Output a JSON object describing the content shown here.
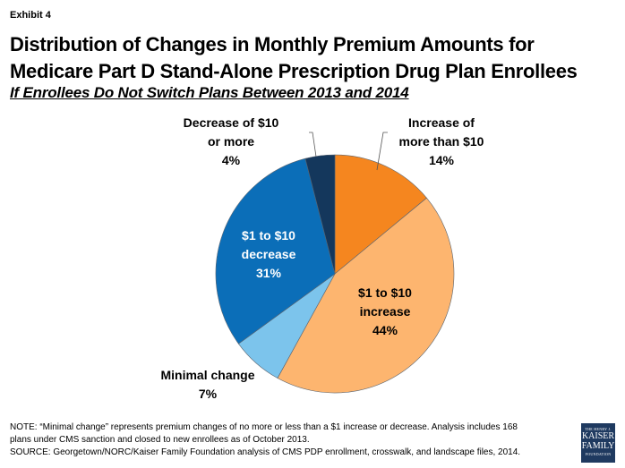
{
  "header": {
    "exhibit": "Exhibit 4",
    "title_line1": "Distribution of Changes in Monthly Premium Amounts for",
    "title_line2": "Medicare Part D Stand-Alone Prescription Drug Plan Enrollees",
    "subtitle": "If Enrollees Do Not Switch Plans Between 2013 and 2014"
  },
  "chart_data": {
    "type": "pie",
    "title": "Distribution of Changes in Monthly Premium Amounts for Medicare Part D Stand-Alone Prescription Drug Plan Enrollees",
    "subtitle": "If Enrollees Do Not Switch Plans Between 2013 and 2014",
    "start": "12 o'clock, clockwise",
    "slices": [
      {
        "name": "Increase of more than $10",
        "value": 14,
        "label_lines": [
          "Increase of",
          "more than $10",
          "14%"
        ],
        "color": "#F5861F",
        "label_color": "#000000",
        "label_position": "outside"
      },
      {
        "name": "$1 to $10 increase",
        "value": 44,
        "label_lines": [
          "$1 to $10",
          "increase",
          "44%"
        ],
        "color": "#FDB56F",
        "label_color": "#000000",
        "label_position": "inside"
      },
      {
        "name": "Minimal change",
        "value": 7,
        "label_lines": [
          "Minimal change",
          "7%"
        ],
        "color": "#7CC4EC",
        "label_color": "#000000",
        "label_position": "outside"
      },
      {
        "name": "$1 to $10 decrease",
        "value": 31,
        "label_lines": [
          "$1 to $10",
          "decrease",
          "31%"
        ],
        "color": "#0B6EB8",
        "label_color": "#FFFFFF",
        "label_position": "inside"
      },
      {
        "name": "Decrease of $10 or more",
        "value": 4,
        "label_lines": [
          "Decrease of $10",
          "or more",
          "4%"
        ],
        "color": "#14375C",
        "label_color": "#000000",
        "label_position": "outside"
      }
    ]
  },
  "footer": {
    "note_line1": "NOTE: “Minimal change” represents premium changes of no more or less than a $1 increase or decrease.  Analysis includes 168",
    "note_line2": "plans under CMS sanction and closed to new enrollees as of October 2013.",
    "source": "SOURCE: Georgetown/NORC/Kaiser Family Foundation analysis of CMS PDP enrollment, crosswalk, and landscape files, 2014.",
    "logo": {
      "line1": "THE HENRY J.",
      "line2": "KAISER",
      "line3": "FAMILY",
      "line4": "FOUNDATION"
    }
  }
}
